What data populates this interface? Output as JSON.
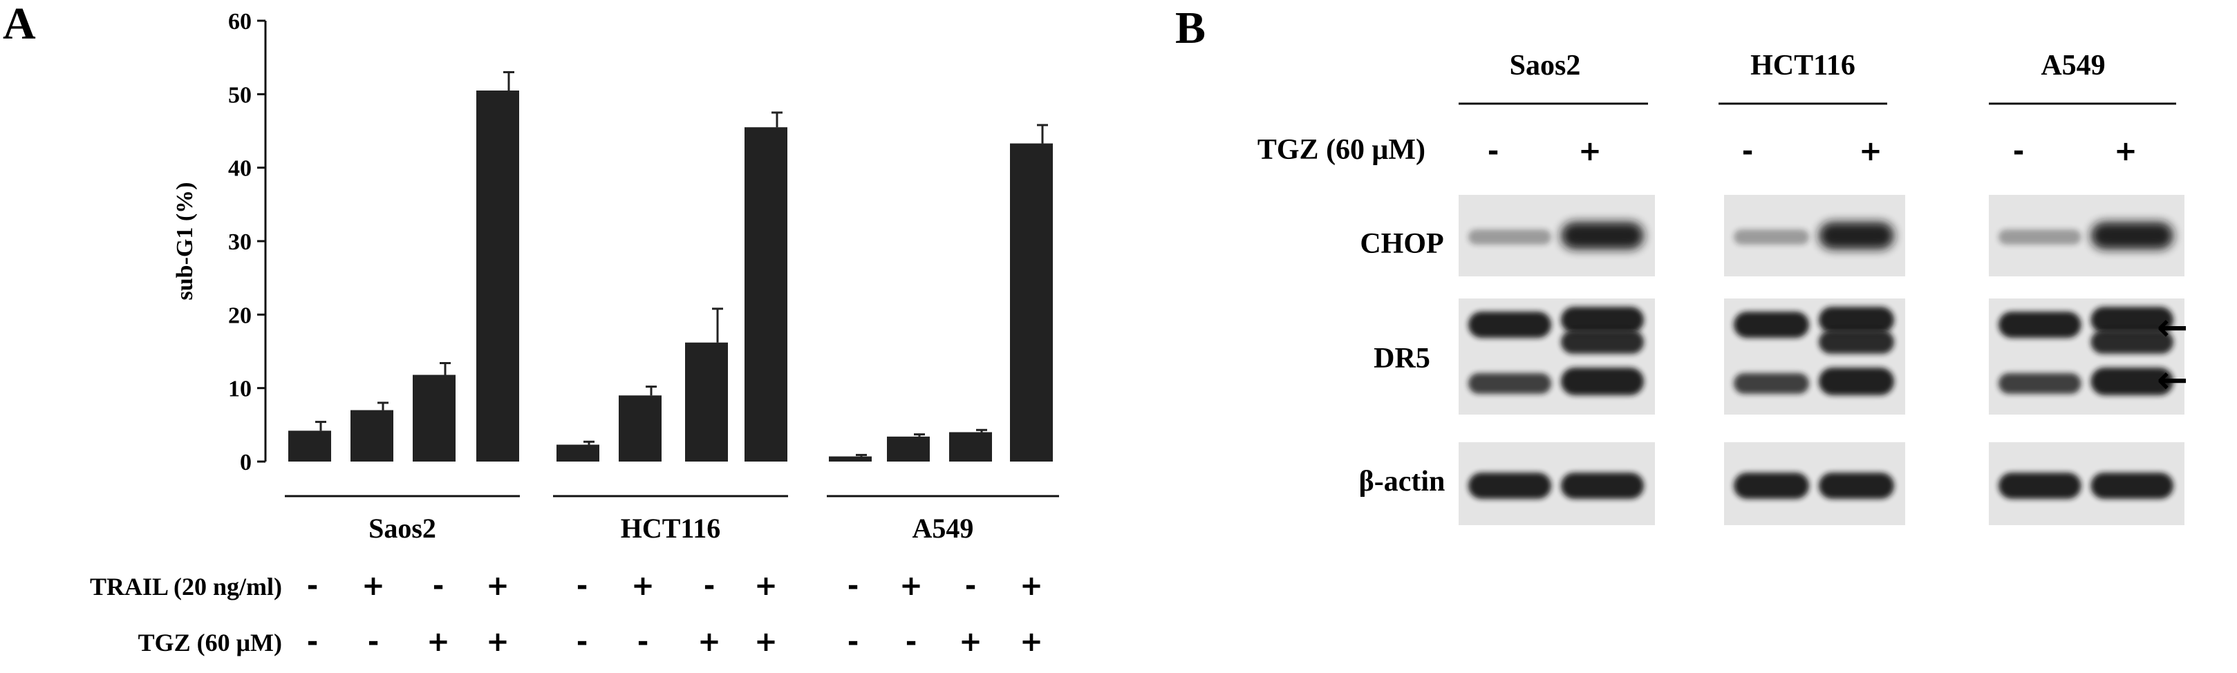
{
  "panel_a": {
    "letter": "A",
    "conditions": [
      {
        "label": "TRAIL (20 ng/ml)",
        "values": [
          "-",
          "+",
          "-",
          "+",
          "-",
          "+",
          "-",
          "+",
          "-",
          "+",
          "-",
          "+"
        ]
      },
      {
        "label": "TGZ (60 μM)",
        "values": [
          "-",
          "-",
          "+",
          "+",
          "-",
          "-",
          "+",
          "+",
          "-",
          "-",
          "+",
          "+"
        ]
      }
    ]
  },
  "chart_data": {
    "type": "bar",
    "title": "",
    "xlabel": "",
    "ylabel": "sub-G1 (%)",
    "ylim": [
      0,
      60
    ],
    "yticks": [
      0,
      10,
      20,
      30,
      40,
      50,
      60
    ],
    "groups": [
      "Saos2",
      "HCT116",
      "A549"
    ],
    "series": [
      {
        "values": [
          4.2,
          7.0,
          11.8,
          50.5,
          2.3,
          9.0,
          16.2,
          45.5,
          0.7,
          3.4,
          4.0,
          43.3
        ],
        "errors": [
          1.2,
          1.0,
          1.6,
          2.5,
          0.4,
          1.2,
          4.6,
          2.0,
          0.2,
          0.3,
          0.3,
          2.5
        ]
      }
    ],
    "bar_color": "#222222",
    "grid": false,
    "legend": "none"
  },
  "panel_b": {
    "letter": "B",
    "cell_lines": [
      "Saos2",
      "HCT116",
      "A549"
    ],
    "treatment_label": "TGZ (60 μM)",
    "treatment_values": [
      "-",
      "+"
    ],
    "proteins": [
      "CHOP",
      "DR5",
      "β-actin"
    ],
    "arrow_glyph": "←"
  }
}
